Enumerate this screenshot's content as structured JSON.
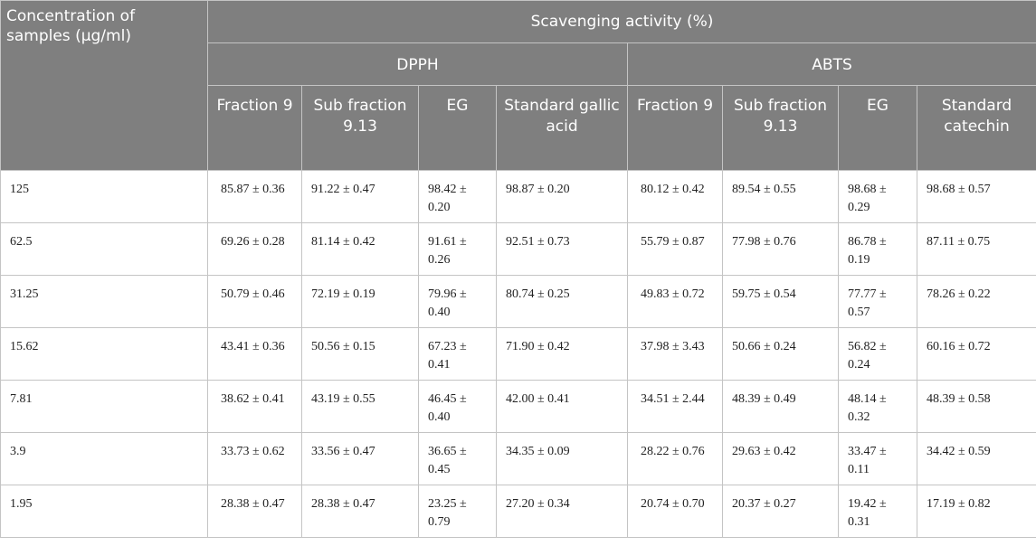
{
  "table": {
    "header": {
      "concentration": "Concentration of samples (µg/ml)",
      "scavenging": "Scavenging activity (%)",
      "groups": [
        "DPPH",
        "ABTS"
      ],
      "columns": [
        "Fraction 9",
        "Sub fraction 9.13",
        "EG",
        "Standard gallic acid",
        "Fraction 9",
        "Sub fraction 9.13",
        "EG",
        "Standard catechin"
      ]
    },
    "rows": [
      [
        "125",
        "85.87 ± 0.36",
        "91.22 ± 0.47",
        "98.42 ± 0.20",
        "98.87 ± 0.20",
        "80.12 ± 0.42",
        "89.54 ± 0.55",
        "98.68 ± 0.29",
        "98.68 ± 0.57"
      ],
      [
        "62.5",
        "69.26 ± 0.28",
        "81.14 ± 0.42",
        "91.61 ± 0.26",
        "92.51 ± 0.73",
        "55.79 ± 0.87",
        "77.98 ± 0.76",
        "86.78 ± 0.19",
        "87.11 ± 0.75"
      ],
      [
        "31.25",
        "50.79 ± 0.46",
        "72.19 ± 0.19",
        "79.96 ± 0.40",
        "80.74 ± 0.25",
        "49.83 ± 0.72",
        "59.75 ± 0.54",
        "77.77 ± 0.57",
        "78.26 ± 0.22"
      ],
      [
        "15.62",
        "43.41 ± 0.36",
        "50.56 ± 0.15",
        "67.23 ± 0.41",
        "71.90 ± 0.42",
        "37.98 ± 3.43",
        "50.66 ± 0.24",
        "56.82 ± 0.24",
        "60.16 ± 0.72"
      ],
      [
        "7.81",
        "38.62 ± 0.41",
        "43.19 ± 0.55",
        "46.45 ± 0.40",
        "42.00 ± 0.41",
        "34.51 ± 2.44",
        "48.39 ± 0.49",
        "48.14 ± 0.32",
        "48.39 ± 0.58"
      ],
      [
        "3.9",
        "33.73 ± 0.62",
        "33.56 ± 0.47",
        "36.65 ± 0.45",
        "34.35 ± 0.09",
        "28.22 ± 0.76",
        "29.63 ± 0.42",
        "33.47 ± 0.11",
        "34.42 ± 0.59"
      ],
      [
        "1.95",
        "28.38 ± 0.47",
        "28.38 ± 0.47",
        "23.25 ± 0.79",
        "27.20 ± 0.34",
        "20.74 ± 0.70",
        "20.37 ± 0.27",
        "19.42 ± 0.31",
        "17.19 ± 0.82"
      ]
    ]
  }
}
